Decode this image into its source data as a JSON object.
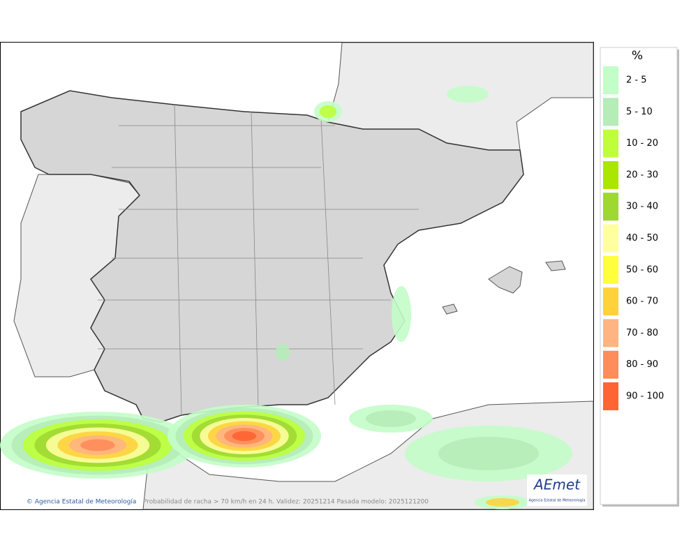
{
  "legend": {
    "title": "%",
    "items": [
      {
        "label": "2 - 5",
        "color": "#c3fdc8"
      },
      {
        "label": "5 - 10",
        "color": "#b5ecb8"
      },
      {
        "label": "10 - 20",
        "color": "#beff3a"
      },
      {
        "label": "20 - 30",
        "color": "#aae600"
      },
      {
        "label": "30 - 40",
        "color": "#a0d832"
      },
      {
        "label": "40 - 50",
        "color": "#ffff9e"
      },
      {
        "label": "50 - 60",
        "color": "#ffff3c"
      },
      {
        "label": "60 - 70",
        "color": "#ffd23c"
      },
      {
        "label": "70 - 80",
        "color": "#ffb482"
      },
      {
        "label": "80 - 90",
        "color": "#ff8c5a"
      },
      {
        "label": "90 - 100",
        "color": "#ff6432"
      }
    ]
  },
  "footer": {
    "copyright": "© Agencia Estatal de Meteorología",
    "caption": "Probabilidad de racha > 70 km/h en 24 h. Validez: 20251214 Pasada modelo: 2025121200"
  },
  "logo": {
    "name": "AEmet",
    "subtitle": "Agencia Estatal de Meteorología"
  }
}
